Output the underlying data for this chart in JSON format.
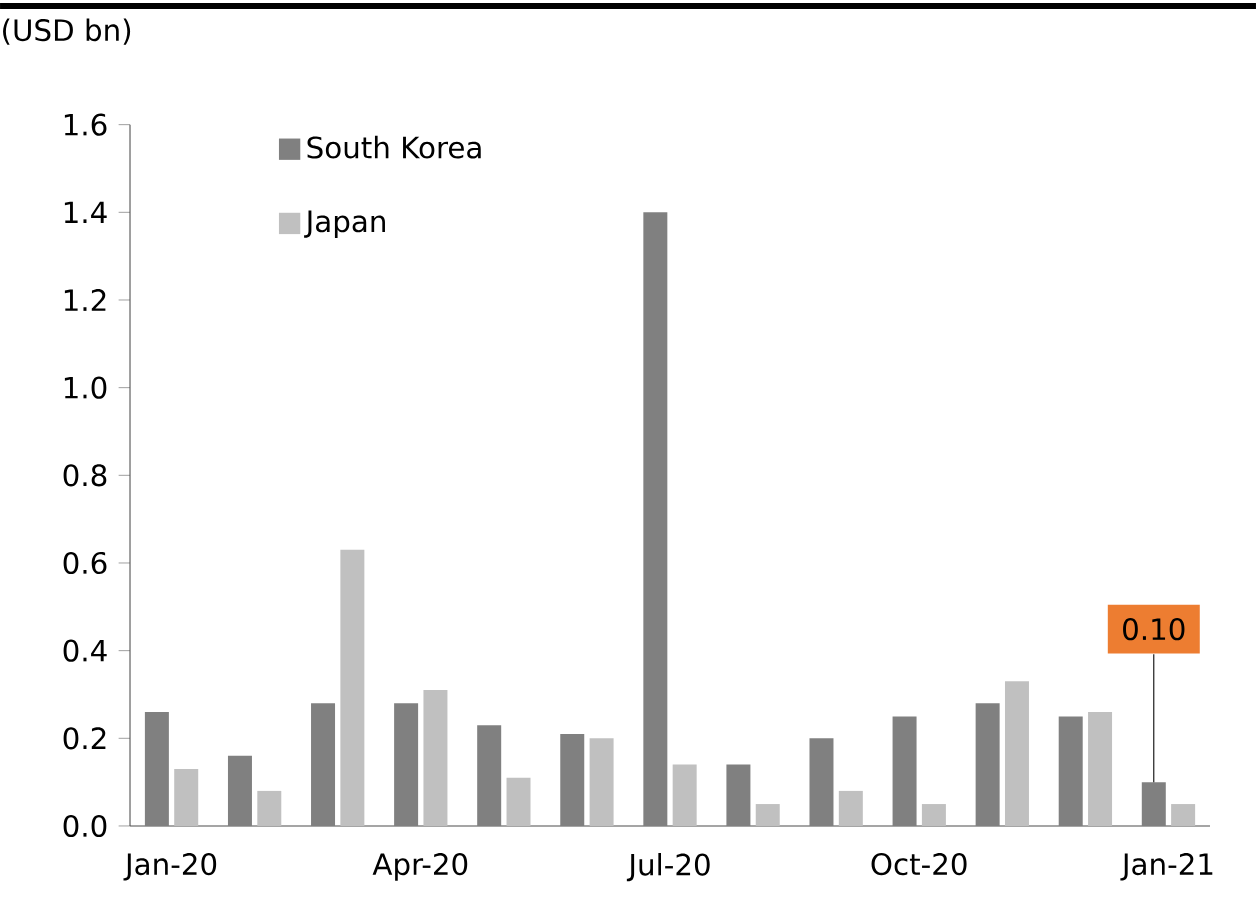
{
  "chart_data": {
    "type": "bar",
    "ylabel": "(USD bn)",
    "categories": [
      "Jan-20",
      null,
      null,
      "Apr-20",
      null,
      null,
      "Jul-20",
      null,
      null,
      "Oct-20",
      null,
      null,
      "Jan-21"
    ],
    "series": [
      {
        "name": "South Korea",
        "color": "#808080",
        "values": [
          0.26,
          0.16,
          0.28,
          0.28,
          0.23,
          0.21,
          1.4,
          0.14,
          0.2,
          0.25,
          0.28,
          0.25,
          0.1
        ],
        "value_labels": [
          null,
          null,
          null,
          null,
          null,
          null,
          null,
          null,
          null,
          null,
          null,
          null,
          "0.10"
        ]
      },
      {
        "name": "Japan",
        "color": "#c0c0c0",
        "values": [
          0.13,
          0.08,
          0.63,
          0.31,
          0.11,
          0.2,
          0.14,
          0.05,
          0.08,
          0.05,
          0.33,
          0.26,
          0.05
        ]
      }
    ],
    "ylim": [
      0,
      1.6
    ],
    "yticks": [
      {
        "value": 0,
        "label": "0.0"
      },
      0.2,
      0.4,
      0.6,
      0.8,
      {
        "value": 1,
        "label": "1.0"
      },
      1.2,
      1.4,
      1.6
    ],
    "grid": false,
    "legend": "top left"
  }
}
